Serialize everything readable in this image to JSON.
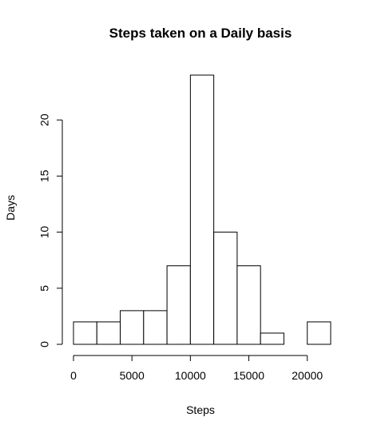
{
  "chart_data": {
    "type": "bar",
    "title": "Steps taken on a Daily basis",
    "xlabel": "Steps",
    "ylabel": "Days",
    "bins": [
      {
        "x0": 0,
        "x1": 2000,
        "value": 2
      },
      {
        "x0": 2000,
        "x1": 4000,
        "value": 2
      },
      {
        "x0": 4000,
        "x1": 6000,
        "value": 3
      },
      {
        "x0": 6000,
        "x1": 8000,
        "value": 3
      },
      {
        "x0": 8000,
        "x1": 10000,
        "value": 7
      },
      {
        "x0": 10000,
        "x1": 12000,
        "value": 24
      },
      {
        "x0": 12000,
        "x1": 14000,
        "value": 10
      },
      {
        "x0": 14000,
        "x1": 16000,
        "value": 7
      },
      {
        "x0": 16000,
        "x1": 18000,
        "value": 1
      },
      {
        "x0": 18000,
        "x1": 20000,
        "value": 0
      },
      {
        "x0": 20000,
        "x1": 22000,
        "value": 2
      }
    ],
    "xlim": [
      0,
      22000
    ],
    "ylim": [
      0,
      24
    ],
    "xticks": [
      0,
      5000,
      10000,
      15000,
      20000
    ],
    "yticks": [
      0,
      5,
      10,
      15,
      20
    ],
    "grid": false
  }
}
